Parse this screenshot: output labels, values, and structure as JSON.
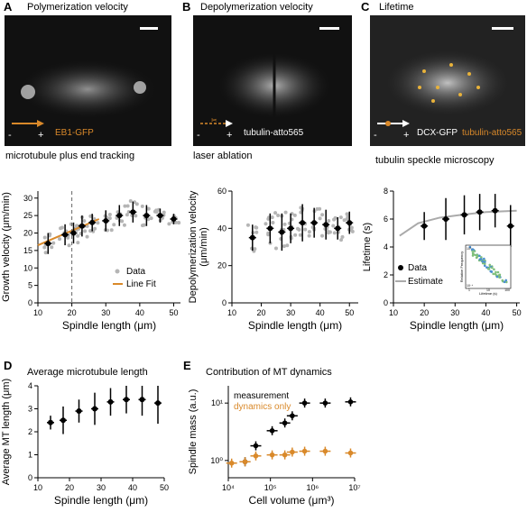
{
  "panels": {
    "A": {
      "letter": "A",
      "title": "Polymerization velocity",
      "marker_minus": "-",
      "marker_plus": "+",
      "probe": "EB1-GFP",
      "caption": "microtubule plus end tracking"
    },
    "B": {
      "letter": "B",
      "title": "Depolymerization velocity",
      "marker_minus": "-",
      "marker_plus": "+",
      "probe": "tubulin-atto565",
      "caption": "laser ablation"
    },
    "C": {
      "letter": "C",
      "title": "Lifetime",
      "marker_minus": "-",
      "marker_plus": "+",
      "probe1": "DCX-GFP",
      "probe2": "tubulin-atto565",
      "caption": "tubulin speckle microscopy"
    },
    "D": {
      "letter": "D",
      "title": "Average microtubule length"
    },
    "E": {
      "letter": "E",
      "title": "Contribution of MT dynamics"
    }
  },
  "colors": {
    "orange": "#d9892a",
    "black": "#000000",
    "gray": "#b5b5b5",
    "estimate": "#aaaaaa"
  },
  "chart_data": [
    {
      "id": "A",
      "type": "scatter",
      "xlabel": "Spindle length (μm)",
      "ylabel": "Growth velocity (μm/min)",
      "xlim": [
        10,
        52
      ],
      "ylim": [
        0,
        32
      ],
      "xticks": [
        "10",
        "20",
        "30",
        "40",
        "50"
      ],
      "yticks": [
        "0",
        "5",
        "10",
        "15",
        "20",
        "25",
        "30"
      ],
      "legend": [
        {
          "label": "Data",
          "kind": "dot"
        },
        {
          "label": "Line Fit",
          "kind": "line"
        }
      ],
      "dashed_x": 20,
      "binned": {
        "x": [
          13,
          18,
          20.5,
          23,
          26,
          30,
          34,
          38,
          42,
          46,
          50
        ],
        "y": [
          17,
          19.5,
          20,
          22,
          23,
          23.5,
          25,
          26,
          25,
          25,
          24
        ],
        "yerr": [
          3,
          3,
          3,
          3,
          2.5,
          3,
          3,
          3,
          3,
          2,
          1.5
        ]
      },
      "fit": {
        "x": [
          10,
          28
        ],
        "y": [
          16.5,
          24
        ]
      }
    },
    {
      "id": "B",
      "type": "scatter",
      "xlabel": "Spindle length (μm)",
      "ylabel": "Depolymerization velocity (μm/min)",
      "xlim": [
        10,
        53
      ],
      "ylim": [
        0,
        60
      ],
      "xticks": [
        "10",
        "20",
        "30",
        "40",
        "50"
      ],
      "yticks": [
        "0",
        "20",
        "40",
        "60"
      ],
      "binned": {
        "x": [
          17,
          23,
          27,
          30,
          34,
          38,
          42,
          46,
          50
        ],
        "y": [
          35,
          40,
          38,
          40,
          43,
          43,
          42,
          40,
          43
        ],
        "yerr": [
          7,
          8,
          10,
          8,
          10,
          8,
          8,
          6,
          6
        ]
      }
    },
    {
      "id": "C",
      "type": "scatter",
      "xlabel": "Spindle length (μm)",
      "ylabel": "Lifetime (s)",
      "xlim": [
        10,
        51
      ],
      "ylim": [
        0,
        8
      ],
      "xticks": [
        "10",
        "20",
        "30",
        "40",
        "50"
      ],
      "yticks": [
        "0",
        "2",
        "4",
        "6",
        "8"
      ],
      "legend": [
        {
          "label": "Data",
          "kind": "dot"
        },
        {
          "label": "Estimate",
          "kind": "line"
        }
      ],
      "binned": {
        "x": [
          20,
          27,
          33,
          38,
          43,
          48
        ],
        "y": [
          5.5,
          6.0,
          6.3,
          6.5,
          6.6,
          5.5
        ],
        "yerr": [
          1.0,
          1.5,
          1.4,
          1.3,
          1.2,
          1.5
        ]
      },
      "estimate": {
        "x": [
          12,
          18,
          25,
          32,
          40,
          50
        ],
        "y": [
          4.8,
          5.7,
          6.1,
          6.3,
          6.5,
          6.6
        ]
      },
      "inset": {
        "xlabel": "Lifetime (s)",
        "ylabel": "Relative Frequency",
        "xticks": [
          "1",
          "10",
          "100"
        ],
        "yticks": [
          "10⁰",
          "10⁻⁴"
        ]
      }
    },
    {
      "id": "D",
      "type": "scatter",
      "xlabel": "Spindle length (μm)",
      "ylabel": "Average MT length (μm)",
      "xlim": [
        10,
        50
      ],
      "ylim": [
        0,
        4
      ],
      "xticks": [
        "10",
        "20",
        "30",
        "40",
        "50"
      ],
      "yticks": [
        "0",
        "1",
        "2",
        "3",
        "4"
      ],
      "binned": {
        "x": [
          14,
          18,
          23,
          28,
          33,
          38,
          43,
          48
        ],
        "y": [
          2.4,
          2.5,
          2.9,
          3.0,
          3.3,
          3.4,
          3.4,
          3.25
        ],
        "yerr": [
          0.3,
          0.6,
          0.5,
          0.7,
          0.6,
          0.6,
          0.7,
          0.9
        ]
      }
    },
    {
      "id": "E",
      "type": "scatter",
      "xlabel": "Cell volume (μm³)",
      "ylabel": "Spindle mass (a.u.)",
      "xscale": "log",
      "yscale": "log",
      "xlim": [
        10000,
        10000000
      ],
      "ylim": [
        0.5,
        20
      ],
      "xticks": [
        "10⁴",
        "10⁵",
        "10⁶",
        "10⁷"
      ],
      "yticks": [
        "10⁰",
        "10¹"
      ],
      "series": [
        {
          "name": "measurement",
          "color": "#000000",
          "x": [
            25000,
            45000,
            110000,
            220000,
            330000,
            650000,
            2000000,
            8000000
          ],
          "y": [
            0.95,
            1.8,
            3.3,
            4.5,
            6.0,
            10,
            10,
            10.5
          ]
        },
        {
          "name": "dynamics only",
          "color": "#d9892a",
          "x": [
            12000,
            25000,
            45000,
            110000,
            220000,
            330000,
            650000,
            2000000,
            8000000
          ],
          "y": [
            0.9,
            0.95,
            1.2,
            1.25,
            1.25,
            1.4,
            1.45,
            1.45,
            1.35
          ]
        }
      ]
    }
  ]
}
